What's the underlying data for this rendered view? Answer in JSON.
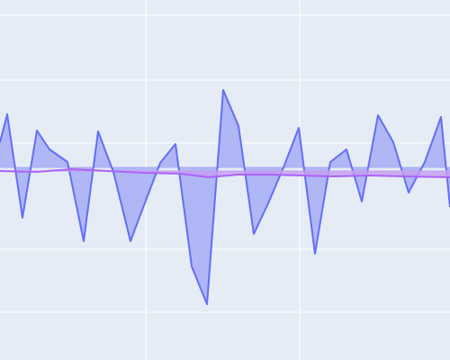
{
  "chart_data": {
    "type": "area",
    "title": "",
    "xlabel": "",
    "ylabel": "",
    "grid": true,
    "legend": "none",
    "xlim": [
      0,
      500
    ],
    "ylim": [
      -100,
      100
    ],
    "x_gridlines": [
      162,
      333
    ],
    "y_gridlines": [
      -73.5,
      -38.5,
      20.5,
      55.5,
      91.5
    ],
    "colors": {
      "background": "#e5ecf6",
      "grid": "#ffffff",
      "series_1_line": "#636efa",
      "series_1_fill": "#a7aef6",
      "series_2_line": "#ab63fa",
      "series_2_fill": "#c59ef0"
    },
    "series": [
      {
        "baseline": 7.0,
        "points": [
          [
            0,
            21
          ],
          [
            8,
            36.5
          ],
          [
            25,
            -21
          ],
          [
            41,
            27.5
          ],
          [
            55,
            17
          ],
          [
            75,
            10
          ],
          [
            93,
            -34
          ],
          [
            109,
            27
          ],
          [
            126,
            4.5
          ],
          [
            145,
            -34
          ],
          [
            160,
            -14
          ],
          [
            178,
            9.5
          ],
          [
            195,
            20
          ],
          [
            213,
            -48
          ],
          [
            230,
            -69
          ],
          [
            248,
            50
          ],
          [
            265,
            30
          ],
          [
            282,
            -30
          ],
          [
            298,
            -13
          ],
          [
            315,
            7
          ],
          [
            332,
            29
          ],
          [
            350,
            -41
          ],
          [
            367,
            10
          ],
          [
            385,
            17
          ],
          [
            402,
            -12
          ],
          [
            420,
            36
          ],
          [
            437,
            21
          ],
          [
            454,
            -7
          ],
          [
            472,
            10
          ],
          [
            490,
            35
          ],
          [
            500,
            -15
          ]
        ]
      },
      {
        "baseline": 5.0,
        "points": [
          [
            0,
            5
          ],
          [
            40,
            4.5
          ],
          [
            80,
            6
          ],
          [
            120,
            5
          ],
          [
            160,
            4
          ],
          [
            200,
            3.5
          ],
          [
            232,
            1.5
          ],
          [
            265,
            3
          ],
          [
            300,
            3
          ],
          [
            335,
            2.5
          ],
          [
            370,
            2
          ],
          [
            410,
            2.5
          ],
          [
            450,
            2
          ],
          [
            500,
            1.5
          ]
        ]
      }
    ]
  }
}
